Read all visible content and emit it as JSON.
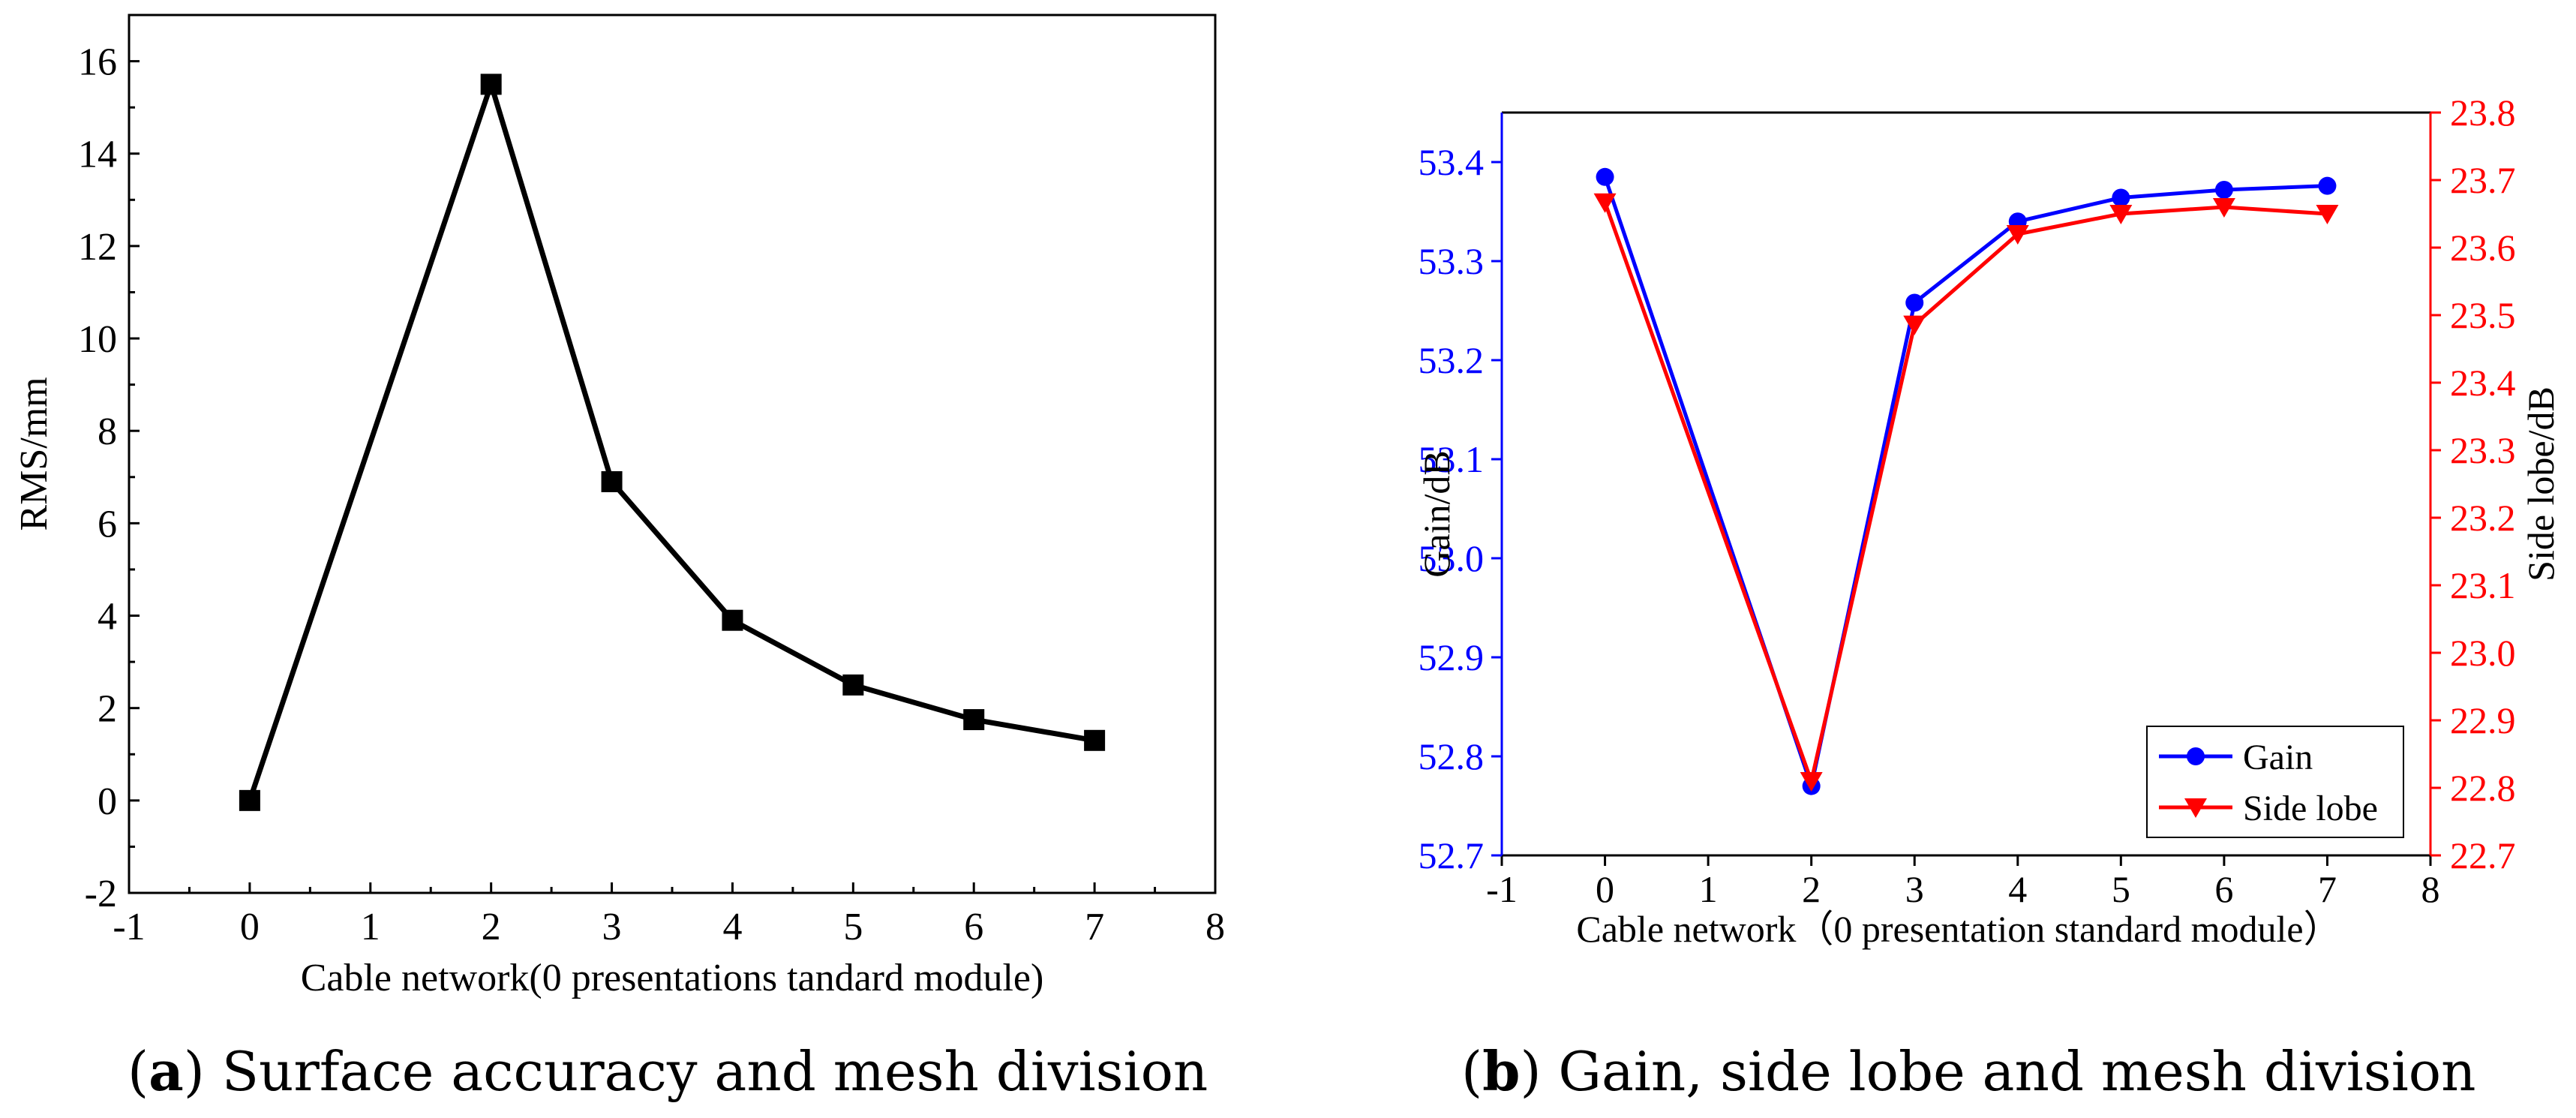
{
  "captions": {
    "a": {
      "letter": "a",
      "text": "Surface accuracy and mesh division"
    },
    "b": {
      "letter": "b",
      "text": "Gain, side lobe and mesh division"
    }
  },
  "chart_data": [
    {
      "id": "a",
      "type": "line",
      "title": "",
      "xlabel": "Cable network(0 presentations tandard module)",
      "ylabel": "RMS/mm",
      "xlim": [
        -1,
        8
      ],
      "ylim": [
        -2,
        17
      ],
      "xticks": [
        -1,
        0,
        1,
        2,
        3,
        4,
        5,
        6,
        7,
        8
      ],
      "yticks": [
        -2,
        0,
        2,
        4,
        6,
        8,
        10,
        12,
        14,
        16
      ],
      "x": [
        0,
        2,
        3,
        4,
        5,
        6,
        7
      ],
      "series": [
        {
          "name": "RMS",
          "color": "#000000",
          "marker": "square",
          "values": [
            0.0,
            15.5,
            6.9,
            3.9,
            2.5,
            1.75,
            1.3
          ]
        }
      ]
    },
    {
      "id": "b",
      "type": "line",
      "title": "",
      "xlabel": "Cable network（0 presentation standard module）",
      "ylabel": "Gain/dB",
      "ylabel_right": "Side lobe/dB",
      "xlim": [
        -1,
        8
      ],
      "ylim": [
        52.7,
        53.45
      ],
      "ylim_right": [
        22.7,
        23.8
      ],
      "xticks": [
        -1,
        0,
        1,
        2,
        3,
        4,
        5,
        6,
        7,
        8
      ],
      "yticks": [
        "52.7",
        "52.8",
        "52.9",
        "53.0",
        "53.1",
        "53.2",
        "53.3",
        "53.4"
      ],
      "yticks_right": [
        "22.7",
        "22.8",
        "22.9",
        "23.0",
        "23.1",
        "23.2",
        "23.3",
        "23.4",
        "23.5",
        "23.6",
        "23.7",
        "23.8"
      ],
      "left_axis_color": "#0000ff",
      "right_axis_color": "#ff0000",
      "legend_position": "bottom-right",
      "x": [
        0,
        2,
        3,
        4,
        5,
        6,
        7
      ],
      "series": [
        {
          "name": "Gain",
          "axis": "left",
          "color": "#0000ff",
          "marker": "circle",
          "values": [
            53.385,
            52.77,
            53.258,
            53.34,
            53.364,
            53.372,
            53.376
          ]
        },
        {
          "name": "Side lobe",
          "axis": "right",
          "color": "#ff0000",
          "marker": "triangle-down",
          "values": [
            23.667,
            22.81,
            23.486,
            23.62,
            23.65,
            23.66,
            23.65
          ]
        }
      ]
    }
  ]
}
